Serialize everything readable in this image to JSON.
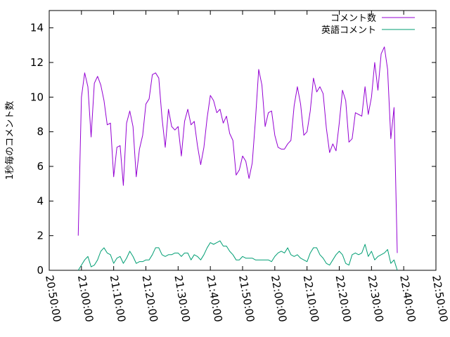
{
  "chart_data": {
    "type": "line",
    "title": "",
    "xlabel": "",
    "ylabel": "1秒毎のコメント数",
    "xlim": [
      "20:50:00",
      "22:50:00"
    ],
    "ylim": [
      0,
      15
    ],
    "x_ticks": [
      "20:50:00",
      "21:00:00",
      "21:10:00",
      "21:20:00",
      "21:30:00",
      "21:40:00",
      "21:50:00",
      "22:00:00",
      "22:10:00",
      "22:20:00",
      "22:30:00",
      "22:40:00",
      "22:50:00"
    ],
    "y_ticks": [
      0,
      2,
      4,
      6,
      8,
      10,
      12,
      14
    ],
    "grid": false,
    "legend_position": "top-right",
    "series": [
      {
        "name": "コメント数",
        "color": "#9400d3",
        "points": [
          [
            "20:59:00",
            2.0
          ],
          [
            "21:00:00",
            10.0
          ],
          [
            "21:01:00",
            11.4
          ],
          [
            "21:02:00",
            10.6
          ],
          [
            "21:03:00",
            7.7
          ],
          [
            "21:04:00",
            10.8
          ],
          [
            "21:05:00",
            11.2
          ],
          [
            "21:06:00",
            10.7
          ],
          [
            "21:07:00",
            9.8
          ],
          [
            "21:08:00",
            8.4
          ],
          [
            "21:09:00",
            8.5
          ],
          [
            "21:10:00",
            5.4
          ],
          [
            "21:11:00",
            7.1
          ],
          [
            "21:12:00",
            7.2
          ],
          [
            "21:13:00",
            4.9
          ],
          [
            "21:14:00",
            8.5
          ],
          [
            "21:15:00",
            9.2
          ],
          [
            "21:16:00",
            8.3
          ],
          [
            "21:17:00",
            5.4
          ],
          [
            "21:18:00",
            7.0
          ],
          [
            "21:19:00",
            7.8
          ],
          [
            "21:20:00",
            9.6
          ],
          [
            "21:21:00",
            9.9
          ],
          [
            "21:22:00",
            11.3
          ],
          [
            "21:23:00",
            11.4
          ],
          [
            "21:24:00",
            11.1
          ],
          [
            "21:25:00",
            8.8
          ],
          [
            "21:26:00",
            7.1
          ],
          [
            "21:27:00",
            9.3
          ],
          [
            "21:28:00",
            8.3
          ],
          [
            "21:29:00",
            8.1
          ],
          [
            "21:30:00",
            8.3
          ],
          [
            "21:31:00",
            6.6
          ],
          [
            "21:32:00",
            8.6
          ],
          [
            "21:33:00",
            9.3
          ],
          [
            "21:34:00",
            8.4
          ],
          [
            "21:35:00",
            8.6
          ],
          [
            "21:36:00",
            7.2
          ],
          [
            "21:37:00",
            6.1
          ],
          [
            "21:38:00",
            7.1
          ],
          [
            "21:39:00",
            8.8
          ],
          [
            "21:40:00",
            10.1
          ],
          [
            "21:41:00",
            9.8
          ],
          [
            "21:42:00",
            9.1
          ],
          [
            "21:43:00",
            9.3
          ],
          [
            "21:44:00",
            8.5
          ],
          [
            "21:45:00",
            8.9
          ],
          [
            "21:46:00",
            7.9
          ],
          [
            "21:47:00",
            7.5
          ],
          [
            "21:48:00",
            5.5
          ],
          [
            "21:49:00",
            5.8
          ],
          [
            "21:50:00",
            6.6
          ],
          [
            "21:51:00",
            6.3
          ],
          [
            "21:52:00",
            5.3
          ],
          [
            "21:53:00",
            6.2
          ],
          [
            "21:54:00",
            8.7
          ],
          [
            "21:55:00",
            11.6
          ],
          [
            "21:56:00",
            10.7
          ],
          [
            "21:57:00",
            8.3
          ],
          [
            "21:58:00",
            9.1
          ],
          [
            "21:59:00",
            9.2
          ],
          [
            "22:00:00",
            7.8
          ],
          [
            "22:01:00",
            7.1
          ],
          [
            "22:02:00",
            7.0
          ],
          [
            "22:03:00",
            7.0
          ],
          [
            "22:04:00",
            7.3
          ],
          [
            "22:05:00",
            7.5
          ],
          [
            "22:06:00",
            9.5
          ],
          [
            "22:07:00",
            10.6
          ],
          [
            "22:08:00",
            9.6
          ],
          [
            "22:09:00",
            7.8
          ],
          [
            "22:10:00",
            8.0
          ],
          [
            "22:11:00",
            9.2
          ],
          [
            "22:12:00",
            11.1
          ],
          [
            "22:13:00",
            10.3
          ],
          [
            "22:14:00",
            10.6
          ],
          [
            "22:15:00",
            10.2
          ],
          [
            "22:16:00",
            8.2
          ],
          [
            "22:17:00",
            6.8
          ],
          [
            "22:18:00",
            7.3
          ],
          [
            "22:19:00",
            6.9
          ],
          [
            "22:20:00",
            8.5
          ],
          [
            "22:21:00",
            10.4
          ],
          [
            "22:22:00",
            9.8
          ],
          [
            "22:23:00",
            7.4
          ],
          [
            "22:24:00",
            7.6
          ],
          [
            "22:25:00",
            9.1
          ],
          [
            "22:26:00",
            9.0
          ],
          [
            "22:27:00",
            8.9
          ],
          [
            "22:28:00",
            10.6
          ],
          [
            "22:29:00",
            9.0
          ],
          [
            "22:30:00",
            10.0
          ],
          [
            "22:31:00",
            12.0
          ],
          [
            "22:32:00",
            10.4
          ],
          [
            "22:33:00",
            12.5
          ],
          [
            "22:34:00",
            12.9
          ],
          [
            "22:35:00",
            11.6
          ],
          [
            "22:36:00",
            7.6
          ],
          [
            "22:37:00",
            9.4
          ],
          [
            "22:38:00",
            1.0
          ]
        ]
      },
      {
        "name": "英語コメント",
        "color": "#009e73",
        "points": [
          [
            "20:59:00",
            0.0
          ],
          [
            "21:00:00",
            0.3
          ],
          [
            "21:01:00",
            0.6
          ],
          [
            "21:02:00",
            0.8
          ],
          [
            "21:03:00",
            0.2
          ],
          [
            "21:04:00",
            0.3
          ],
          [
            "21:05:00",
            0.6
          ],
          [
            "21:06:00",
            1.1
          ],
          [
            "21:07:00",
            1.3
          ],
          [
            "21:08:00",
            1.0
          ],
          [
            "21:09:00",
            0.9
          ],
          [
            "21:10:00",
            0.4
          ],
          [
            "21:11:00",
            0.7
          ],
          [
            "21:12:00",
            0.8
          ],
          [
            "21:13:00",
            0.4
          ],
          [
            "21:14:00",
            0.7
          ],
          [
            "21:15:00",
            1.1
          ],
          [
            "21:16:00",
            0.8
          ],
          [
            "21:17:00",
            0.4
          ],
          [
            "21:18:00",
            0.5
          ],
          [
            "21:19:00",
            0.5
          ],
          [
            "21:20:00",
            0.6
          ],
          [
            "21:21:00",
            0.6
          ],
          [
            "21:22:00",
            0.9
          ],
          [
            "21:23:00",
            1.3
          ],
          [
            "21:24:00",
            1.3
          ],
          [
            "21:25:00",
            0.9
          ],
          [
            "21:26:00",
            0.8
          ],
          [
            "21:27:00",
            0.9
          ],
          [
            "21:28:00",
            0.9
          ],
          [
            "21:29:00",
            1.0
          ],
          [
            "21:30:00",
            1.0
          ],
          [
            "21:31:00",
            0.8
          ],
          [
            "21:32:00",
            1.0
          ],
          [
            "21:33:00",
            1.0
          ],
          [
            "21:34:00",
            0.6
          ],
          [
            "21:35:00",
            0.9
          ],
          [
            "21:36:00",
            0.8
          ],
          [
            "21:37:00",
            0.6
          ],
          [
            "21:38:00",
            0.9
          ],
          [
            "21:39:00",
            1.3
          ],
          [
            "21:40:00",
            1.6
          ],
          [
            "21:41:00",
            1.5
          ],
          [
            "21:42:00",
            1.6
          ],
          [
            "21:43:00",
            1.7
          ],
          [
            "21:44:00",
            1.4
          ],
          [
            "21:45:00",
            1.4
          ],
          [
            "21:46:00",
            1.1
          ],
          [
            "21:47:00",
            0.9
          ],
          [
            "21:48:00",
            0.6
          ],
          [
            "21:49:00",
            0.6
          ],
          [
            "21:50:00",
            0.8
          ],
          [
            "21:51:00",
            0.7
          ],
          [
            "21:52:00",
            0.7
          ],
          [
            "21:53:00",
            0.7
          ],
          [
            "21:54:00",
            0.6
          ],
          [
            "21:55:00",
            0.6
          ],
          [
            "21:56:00",
            0.6
          ],
          [
            "21:57:00",
            0.6
          ],
          [
            "21:58:00",
            0.6
          ],
          [
            "21:59:00",
            0.5
          ],
          [
            "22:00:00",
            0.8
          ],
          [
            "22:01:00",
            1.0
          ],
          [
            "22:02:00",
            1.1
          ],
          [
            "22:03:00",
            1.0
          ],
          [
            "22:04:00",
            1.3
          ],
          [
            "22:05:00",
            0.9
          ],
          [
            "22:06:00",
            0.8
          ],
          [
            "22:07:00",
            0.9
          ],
          [
            "22:08:00",
            0.7
          ],
          [
            "22:09:00",
            0.6
          ],
          [
            "22:10:00",
            0.5
          ],
          [
            "22:11:00",
            1.0
          ],
          [
            "22:12:00",
            1.3
          ],
          [
            "22:13:00",
            1.3
          ],
          [
            "22:14:00",
            0.9
          ],
          [
            "22:15:00",
            0.7
          ],
          [
            "22:16:00",
            0.4
          ],
          [
            "22:17:00",
            0.3
          ],
          [
            "22:18:00",
            0.6
          ],
          [
            "22:19:00",
            0.9
          ],
          [
            "22:20:00",
            1.1
          ],
          [
            "22:21:00",
            0.9
          ],
          [
            "22:22:00",
            0.4
          ],
          [
            "22:23:00",
            0.3
          ],
          [
            "22:24:00",
            0.9
          ],
          [
            "22:25:00",
            1.0
          ],
          [
            "22:26:00",
            0.9
          ],
          [
            "22:27:00",
            1.0
          ],
          [
            "22:28:00",
            1.5
          ],
          [
            "22:29:00",
            0.8
          ],
          [
            "22:30:00",
            1.1
          ],
          [
            "22:31:00",
            0.6
          ],
          [
            "22:32:00",
            0.8
          ],
          [
            "22:33:00",
            0.9
          ],
          [
            "22:34:00",
            1.0
          ],
          [
            "22:35:00",
            1.2
          ],
          [
            "22:36:00",
            0.4
          ],
          [
            "22:37:00",
            0.6
          ],
          [
            "22:38:00",
            0.0
          ]
        ]
      }
    ]
  }
}
